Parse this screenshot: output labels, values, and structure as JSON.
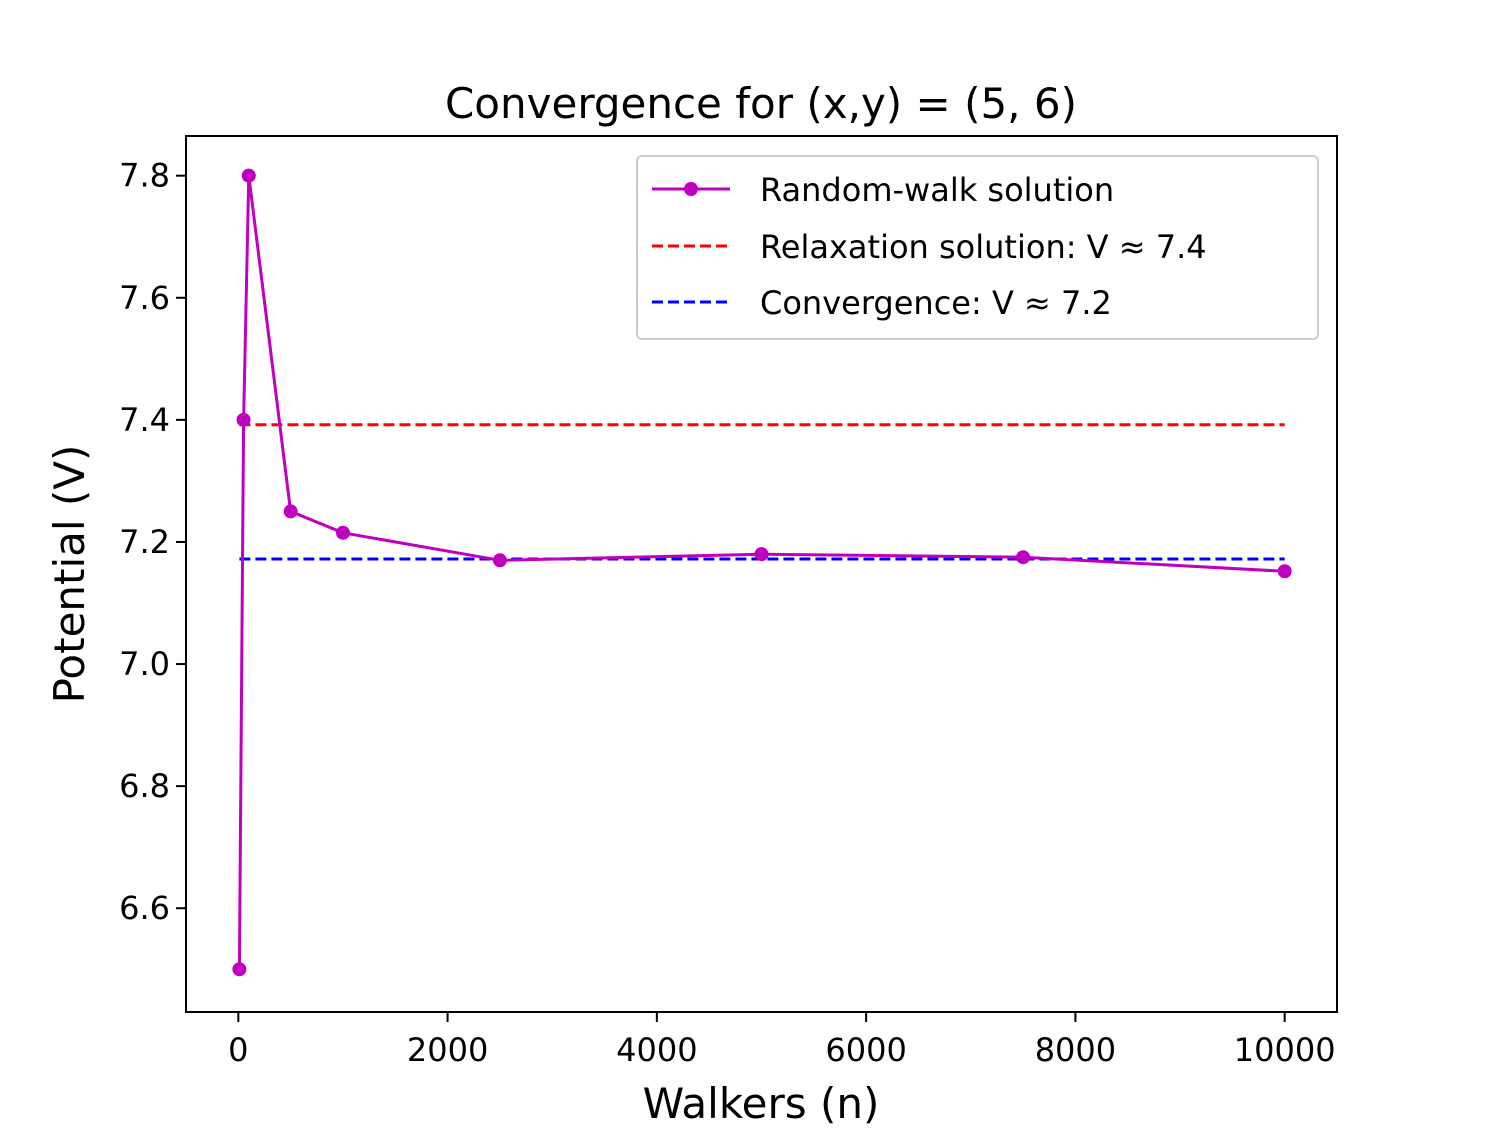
{
  "chart_data": {
    "type": "line",
    "title": "Convergence for (x,y) = (5, 6)",
    "xlabel": "Walkers (n)",
    "ylabel": "Potential (V)",
    "xlim": [
      -500,
      10500
    ],
    "ylim": [
      6.43,
      7.865
    ],
    "xticks": [
      0,
      2000,
      4000,
      6000,
      8000,
      10000
    ],
    "xtick_labels": [
      "0",
      "2000",
      "4000",
      "6000",
      "8000",
      "10000"
    ],
    "yticks": [
      6.6,
      6.8,
      7.0,
      7.2,
      7.4,
      7.6,
      7.8
    ],
    "ytick_labels": [
      "6.6",
      "6.8",
      "7.0",
      "7.2",
      "7.4",
      "7.6",
      "7.8"
    ],
    "grid": false,
    "legend_position": "top-right",
    "series": [
      {
        "name": "Random-walk solution",
        "style": "solid",
        "marker": "circle",
        "color": "#bf00bf",
        "x": [
          10,
          50,
          100,
          500,
          1000,
          2500,
          5000,
          7500,
          10000
        ],
        "y": [
          6.5,
          7.4,
          7.8,
          7.25,
          7.215,
          7.17,
          7.18,
          7.175,
          7.152
        ]
      },
      {
        "name": "Relaxation solution: V ≈ 7.4",
        "style": "dashed",
        "color": "#ff0000",
        "x": [
          10,
          10000
        ],
        "y": [
          7.392,
          7.392
        ]
      },
      {
        "name": "Convergence:  V ≈ 7.2",
        "style": "dashed",
        "color": "#0000ff",
        "x": [
          10,
          10000
        ],
        "y": [
          7.172,
          7.172
        ]
      }
    ]
  }
}
